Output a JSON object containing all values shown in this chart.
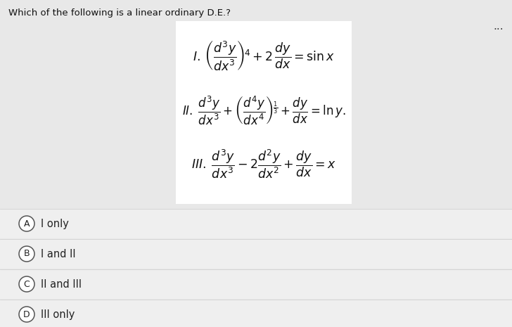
{
  "title": "Which of the following is a linear ordinary D.E.?",
  "title_fontsize": 9.5,
  "bg_color": "#e8e8e8",
  "white_box_color": "#ffffff",
  "option_bg": "#efefef",
  "options": [
    "I only",
    "I and II",
    "II and III",
    "III only"
  ],
  "option_labels": [
    "A",
    "B",
    "C",
    "D"
  ],
  "dots": "...",
  "eq_fontsize": 12.5,
  "option_fontsize": 10.5,
  "option_color": "#222222",
  "circle_edge_color": "#555555"
}
